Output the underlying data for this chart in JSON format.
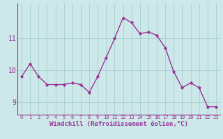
{
  "x": [
    0,
    1,
    2,
    3,
    4,
    5,
    6,
    7,
    8,
    9,
    10,
    11,
    12,
    13,
    14,
    15,
    16,
    17,
    18,
    19,
    20,
    21,
    22,
    23
  ],
  "y": [
    9.8,
    10.2,
    9.8,
    9.55,
    9.55,
    9.55,
    9.6,
    9.55,
    9.3,
    9.8,
    10.4,
    11.0,
    11.65,
    11.5,
    11.15,
    11.2,
    11.1,
    10.7,
    9.95,
    9.45,
    9.6,
    9.45,
    8.85,
    8.85
  ],
  "line_color": "#993399",
  "marker": "D",
  "marker_size": 2.2,
  "bg_color": "#cce8e8",
  "grid_color": "#a8cece",
  "xlabel": "Windchill (Refroidissement éolien,°C)",
  "xlabel_color": "#993399",
  "tick_color": "#993399",
  "ylim": [
    8.6,
    12.1
  ],
  "xlim": [
    -0.5,
    23.5
  ],
  "yticks": [
    9,
    10,
    11
  ],
  "xticks": [
    0,
    1,
    2,
    3,
    4,
    5,
    6,
    7,
    8,
    9,
    10,
    11,
    12,
    13,
    14,
    15,
    16,
    17,
    18,
    19,
    20,
    21,
    22,
    23
  ],
  "line_width": 1.0,
  "xlabel_fontsize": 6.5,
  "ytick_fontsize": 7.0,
  "xtick_fontsize": 5.0
}
